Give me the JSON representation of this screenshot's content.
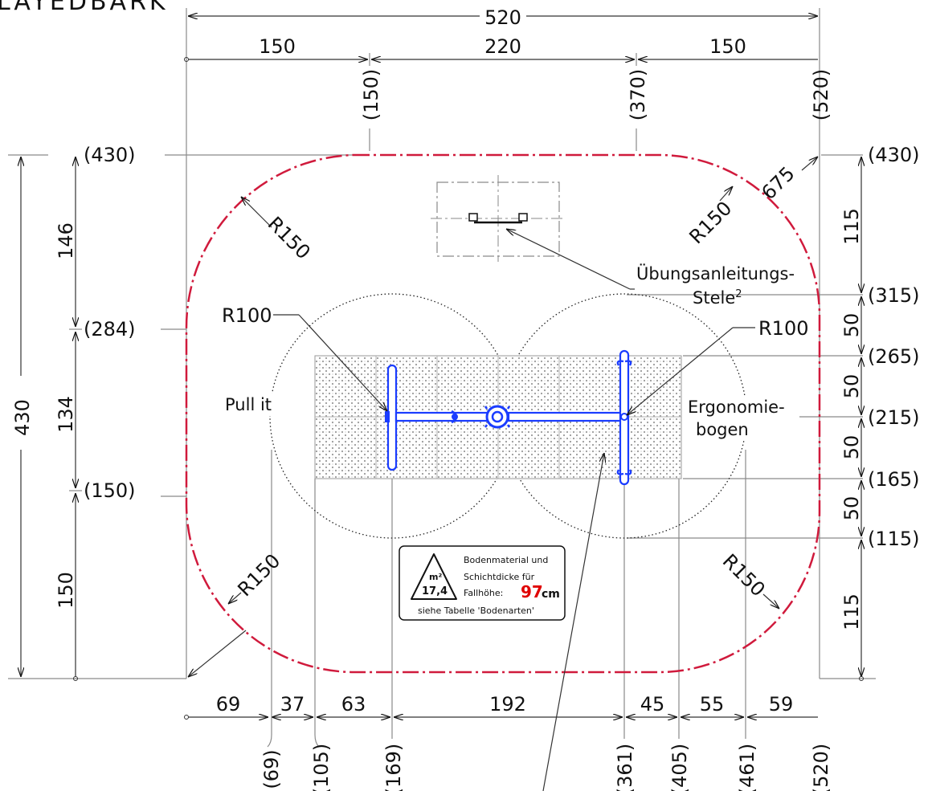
{
  "header": {
    "title_fragment": "LAYEDBARK"
  },
  "colors": {
    "safety_zone": "#d01a3c",
    "equipment": "#1a3cff",
    "ink": "#111111",
    "aux": "#8a8a8a",
    "value_red": "#e00000"
  },
  "top_dims": {
    "overall": "520",
    "segments": [
      "150",
      "220",
      "150"
    ],
    "coords": [
      "(150)",
      "(370)",
      "(520)"
    ]
  },
  "left_dims": {
    "overall": "430",
    "segments": [
      "146",
      "134",
      "150"
    ],
    "coords": [
      "(430)",
      "(284)",
      "(150)"
    ]
  },
  "right_dims": {
    "coords": [
      "(430)",
      "(315)",
      "(265)",
      "(215)",
      "(165)",
      "(115)"
    ],
    "segments": [
      "115",
      "50",
      "50",
      "50",
      "50",
      "115"
    ]
  },
  "bottom_dims": {
    "segments": [
      "69",
      "37",
      "63",
      "192",
      "45",
      "55",
      "59"
    ],
    "coords": [
      "(69)",
      "(105)",
      "(169)",
      "(361)",
      "(405)",
      "(461)",
      "(520)"
    ]
  },
  "radii": {
    "corner_tl": "R150",
    "corner_tr": "R150",
    "corner_bl": "R150",
    "corner_br": "R150",
    "diag": "675",
    "circle_left": "R100",
    "circle_right": "R100"
  },
  "labels": {
    "stele_line1": "Übungsanleitungs-",
    "stele_line2": "Stele",
    "stele_sup": "2",
    "pull": "Pull it",
    "ergo_line1": "Ergonomie-",
    "ergo_line2": "bogen"
  },
  "info_box": {
    "unit": "m²",
    "area": "17,4",
    "line1": "Bodenmaterial und",
    "line2": "Schichtdicke für",
    "line3": "Fallhöhe:",
    "height_value": "97",
    "height_unit": "cm",
    "line4": "siehe Tabelle 'Bodenarten'"
  }
}
